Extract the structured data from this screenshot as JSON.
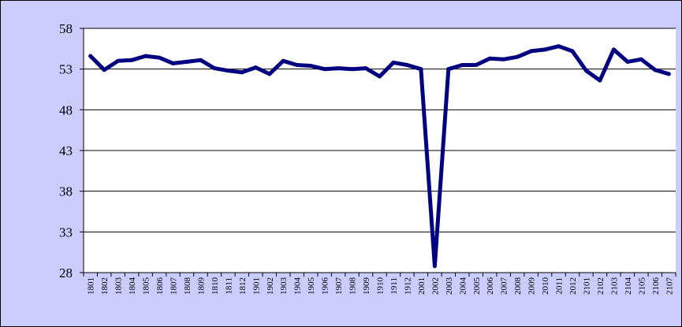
{
  "chart_data": {
    "type": "line",
    "title": "",
    "xlabel": "",
    "ylabel": "",
    "ylim": [
      28,
      58
    ],
    "yticks": [
      58,
      53,
      48,
      43,
      38,
      33,
      28
    ],
    "grid": true,
    "legend": "none",
    "colors": {
      "background": "#ccccff",
      "plot": "#ffffff",
      "line": "#000080",
      "grid": "#000000"
    },
    "x": [
      "1801",
      "1802",
      "1803",
      "1804",
      "1805",
      "1806",
      "1807",
      "1808",
      "1809",
      "1810",
      "1811",
      "1812",
      "1901",
      "1902",
      "1903",
      "1904",
      "1905",
      "1906",
      "1907",
      "1908",
      "1909",
      "1910",
      "1911",
      "1912",
      "2001",
      "2002",
      "2003",
      "2004",
      "2005",
      "2006",
      "2007",
      "2008",
      "2009",
      "2010",
      "2011",
      "2012",
      "2101",
      "2102",
      "2103",
      "2104",
      "2105",
      "2106",
      "2107"
    ],
    "series": [
      {
        "values": [
          54.6,
          52.9,
          54.0,
          54.1,
          54.6,
          54.4,
          53.7,
          53.9,
          54.1,
          53.1,
          52.8,
          52.6,
          53.2,
          52.4,
          54.0,
          53.5,
          53.4,
          53.0,
          53.1,
          53.0,
          53.1,
          52.1,
          53.8,
          53.5,
          53.0,
          28.8,
          53.0,
          53.5,
          53.5,
          54.3,
          54.2,
          54.5,
          55.2,
          55.4,
          55.8,
          55.2,
          52.8,
          51.6,
          55.4,
          53.9,
          54.2,
          52.9,
          52.4
        ]
      }
    ]
  }
}
